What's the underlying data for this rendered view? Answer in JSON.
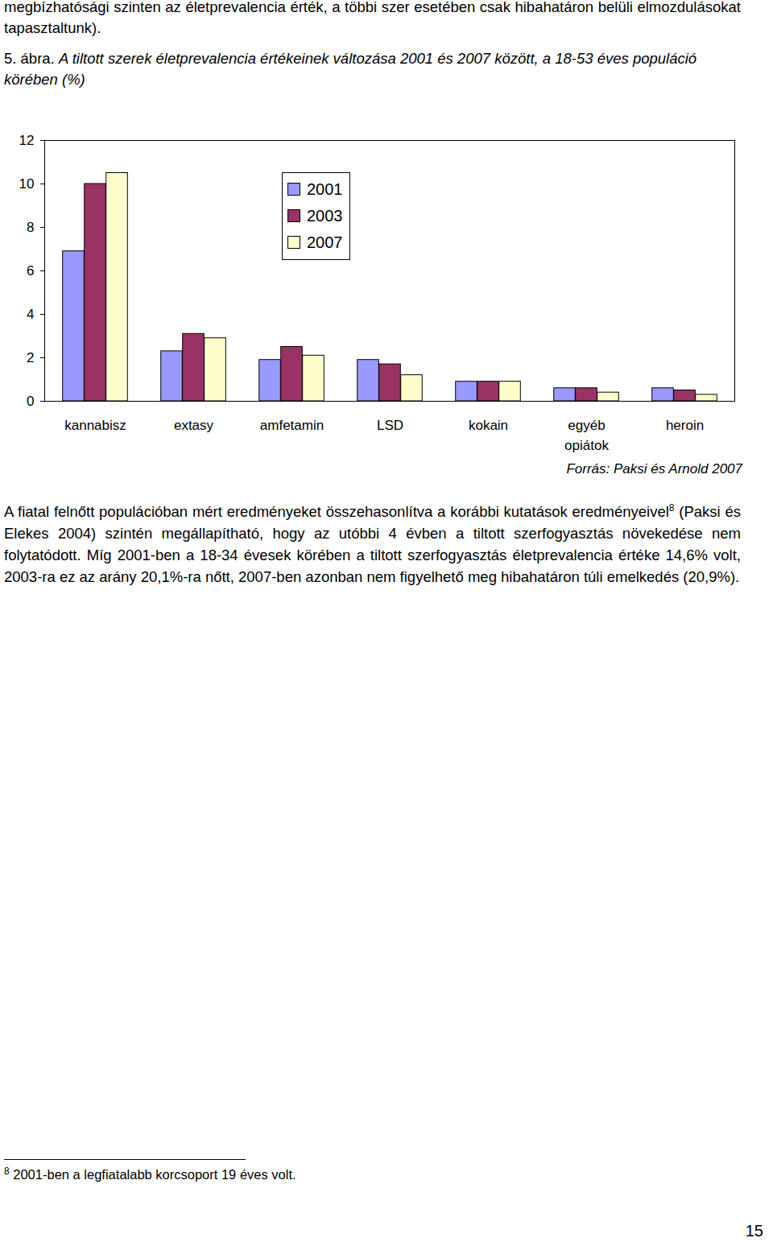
{
  "document": {
    "intro_text": "megbízhatósági szinten az életprevalencia érték, a többi szer esetében csak hibahatáron belüli elmozdulásokat tapasztaltunk).",
    "figure_label": "5. ábra.",
    "source": "Forrás: Paksi és Arnold 2007",
    "paragraph": {
      "before": "A fiatal felnőtt populációban mért eredményeket összehasonlítva a korábbi kutatások eredményeivel",
      "footnote_mark": "8",
      "after": " (Paksi és Elekes 2004) szintén megállapítható, hogy az utóbbi 4 évben a tiltott szerfogyasztás növekedése nem folytatódott. Míg 2001-ben a 18-34 évesek körében a tiltott szerfogyasztás életprevalencia értéke 14,6% volt, 2003-ra ez az arány 20,1%-ra nőtt, 2007-ben azonban nem figyelhető meg hibahatáron túli emelkedés (20,9%)."
    },
    "footnote": {
      "mark": "8",
      "text": "2001-ben a legfiatalabb korcsoport 19 éves volt."
    },
    "page_number": "15"
  },
  "chart_data": {
    "type": "bar",
    "title": "A tiltott szerek életprevalencia értékeinek változása 2001 és 2007 között, a 18-53 éves populáció körében (%)",
    "categories": [
      "kannabisz",
      "extasy",
      "amfetamin",
      "LSD",
      "kokain",
      "egyéb opiátok",
      "heroin"
    ],
    "series": [
      {
        "name": "2001",
        "color": "#9999ff",
        "values": [
          6.9,
          2.3,
          1.9,
          1.9,
          0.9,
          0.6,
          0.6
        ]
      },
      {
        "name": "2003",
        "color": "#993366",
        "values": [
          10.0,
          3.1,
          2.5,
          1.7,
          0.9,
          0.6,
          0.5
        ]
      },
      {
        "name": "2007",
        "color": "#ffffcc",
        "values": [
          10.5,
          2.9,
          2.1,
          1.2,
          0.9,
          0.4,
          0.3
        ]
      }
    ],
    "ylim": [
      0,
      12
    ],
    "yticks": [
      0,
      2,
      4,
      6,
      8,
      10,
      12
    ],
    "grid": false,
    "legend": "top"
  }
}
